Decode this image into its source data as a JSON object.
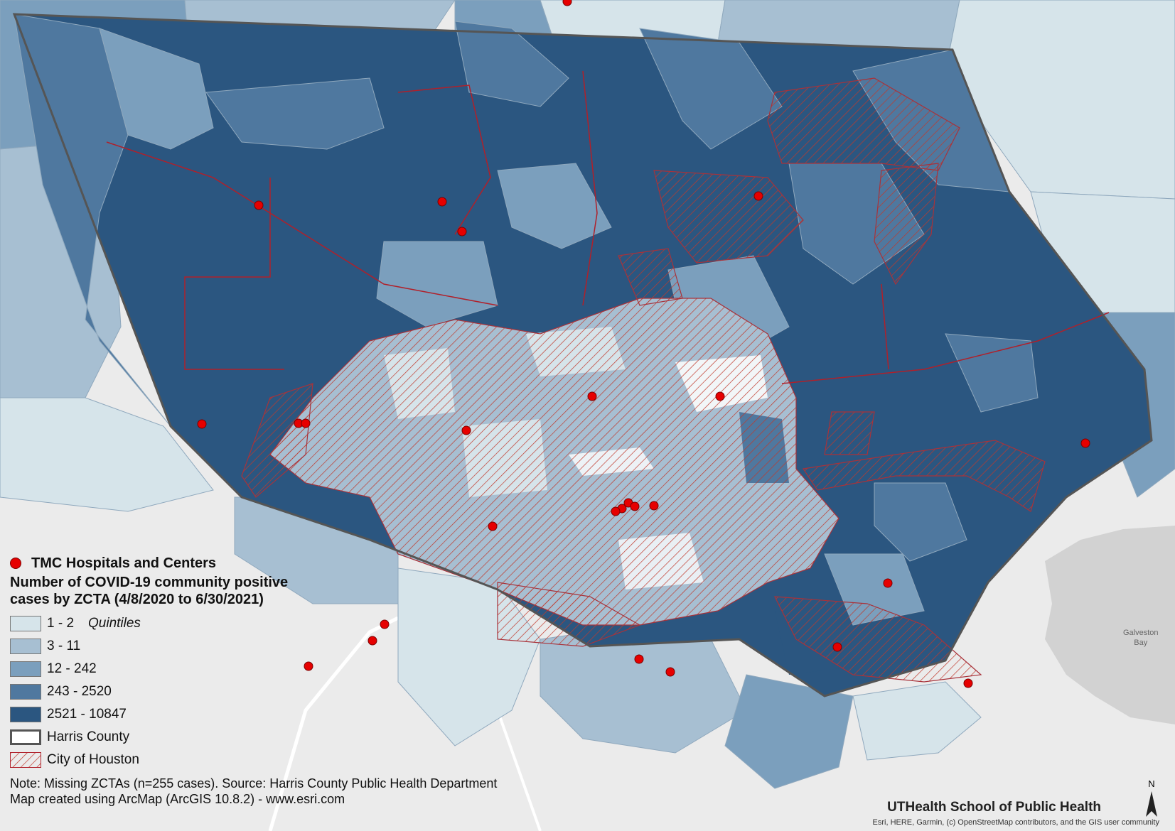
{
  "legend": {
    "points_label": "TMC Hospitals and Centers",
    "title_line1": "Number of COVID-19 community positive",
    "title_line2": "cases by ZCTA (4/8/2020 to 6/30/2021)",
    "quintile_word": "Quintiles",
    "classes": [
      {
        "label": "1 - 2",
        "color": "#d6e4ea"
      },
      {
        "label": "3 - 11",
        "color": "#a7bfd2"
      },
      {
        "label": "12 - 242",
        "color": "#7b9fbd"
      },
      {
        "label": "243 - 2520",
        "color": "#4f789f"
      },
      {
        "label": "2521 - 10847",
        "color": "#2b5680"
      }
    ],
    "harris_label": "Harris County",
    "houston_label": "City of Houston"
  },
  "notes": {
    "line1": "Note: Missing ZCTAs (n=255 cases). Source: Harris County Public Health Department",
    "line2": "Map created using ArcMap (ArcGIS 10.8.2) - www.esri.com"
  },
  "credit": "UTHealth School of Public Health",
  "attribution": "Esri, HERE, Garmin, (c) OpenStreetMap contributors, and the GIS user community",
  "bay_label_1": "Galveston",
  "bay_label_2": "Bay",
  "north_label": "N",
  "colors": {
    "hospital": "#e60000",
    "city_hatch": "#c0392b",
    "county_outline": "#555555",
    "basemap": "#ebebeb",
    "water": "#d2d2d2"
  }
}
